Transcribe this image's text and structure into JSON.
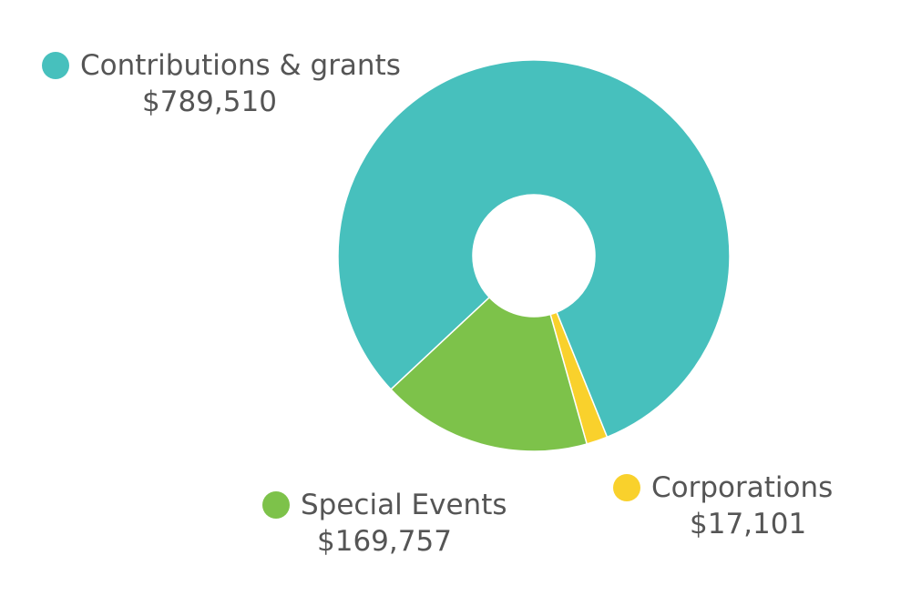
{
  "chart_data": {
    "type": "pie",
    "donut": true,
    "title": "",
    "legend_placement": "beside-slices",
    "series": [
      {
        "name": "Contributions & grants",
        "value": 789510,
        "label": "$789,510",
        "color": "#47c0bd"
      },
      {
        "name": "Special Events",
        "value": 169757,
        "label": "$169,757",
        "color": "#7dc24a"
      },
      {
        "name": "Corporations",
        "value": 17101,
        "label": "$17,101",
        "color": "#f9d12c"
      }
    ]
  }
}
